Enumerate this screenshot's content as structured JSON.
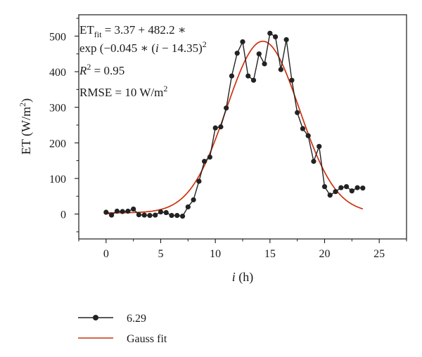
{
  "chart_data": {
    "type": "line",
    "xlabel": {
      "var": "i",
      "unit": " (h)"
    },
    "ylabel": {
      "main": "ET (W/m",
      "sup": "2",
      "end": ")"
    },
    "xlim": [
      -2.5,
      27.5
    ],
    "ylim": [
      -70,
      560
    ],
    "xticks": [
      0,
      5,
      10,
      15,
      20,
      25
    ],
    "yticks": [
      0,
      100,
      200,
      300,
      400,
      500
    ],
    "tick_labels_x": [
      "0",
      "5",
      "10",
      "15",
      "20",
      "25"
    ],
    "tick_labels_y": [
      "0",
      "100",
      "200",
      "300",
      "400",
      "500"
    ],
    "grid": false,
    "legend_position": "bottom-left",
    "series": [
      {
        "name": "6.29",
        "style": "line-with-markers",
        "color": "#222222",
        "points": [
          [
            0,
            5
          ],
          [
            0.5,
            -3
          ],
          [
            1,
            8
          ],
          [
            1.5,
            7
          ],
          [
            2,
            8
          ],
          [
            2.5,
            14
          ],
          [
            3,
            -2
          ],
          [
            3.5,
            -3
          ],
          [
            4,
            -4
          ],
          [
            4.5,
            -3
          ],
          [
            5,
            6
          ],
          [
            5.5,
            4
          ],
          [
            6,
            -4
          ],
          [
            6.5,
            -4
          ],
          [
            7,
            -6
          ],
          [
            7.5,
            20
          ],
          [
            8,
            40
          ],
          [
            8.5,
            92
          ],
          [
            9,
            148
          ],
          [
            9.5,
            160
          ],
          [
            10,
            242
          ],
          [
            10.5,
            245
          ],
          [
            11,
            298
          ],
          [
            11.5,
            388
          ],
          [
            12,
            452
          ],
          [
            12.5,
            484
          ],
          [
            13,
            388
          ],
          [
            13.5,
            376
          ],
          [
            14,
            450
          ],
          [
            14.5,
            422
          ],
          [
            15,
            508
          ],
          [
            15.5,
            498
          ],
          [
            16,
            406
          ],
          [
            16.5,
            490
          ],
          [
            17,
            376
          ],
          [
            17.5,
            285
          ],
          [
            18,
            240
          ],
          [
            18.5,
            220
          ],
          [
            19,
            148
          ],
          [
            19.5,
            190
          ],
          [
            20,
            77
          ],
          [
            20.5,
            53
          ],
          [
            21,
            63
          ],
          [
            21.5,
            74
          ],
          [
            22,
            77
          ],
          [
            22.5,
            65
          ],
          [
            23,
            74
          ],
          [
            23.5,
            73
          ]
        ]
      },
      {
        "name": "Gauss fit",
        "style": "line",
        "color": "#cc3311",
        "model": {
          "y0": 3.37,
          "A": 482.2,
          "k": 0.045,
          "xc": 14.35,
          "x_range": [
            0,
            23.5
          ]
        }
      }
    ],
    "annotations": {
      "line1": {
        "lhs": "ET",
        "sub": "fit",
        "rhs": " = 3.37 + 482.2 ∗"
      },
      "line2": {
        "text": "exp (−0.045 ∗ (",
        "var": "i",
        "tail": " − 14.35)",
        "sup": "2"
      },
      "line3": {
        "var": "R",
        "sup": "2",
        "tail": " = 0.95"
      },
      "line4": {
        "text": "RMSE = 10 W/m",
        "sup": "2"
      }
    }
  }
}
